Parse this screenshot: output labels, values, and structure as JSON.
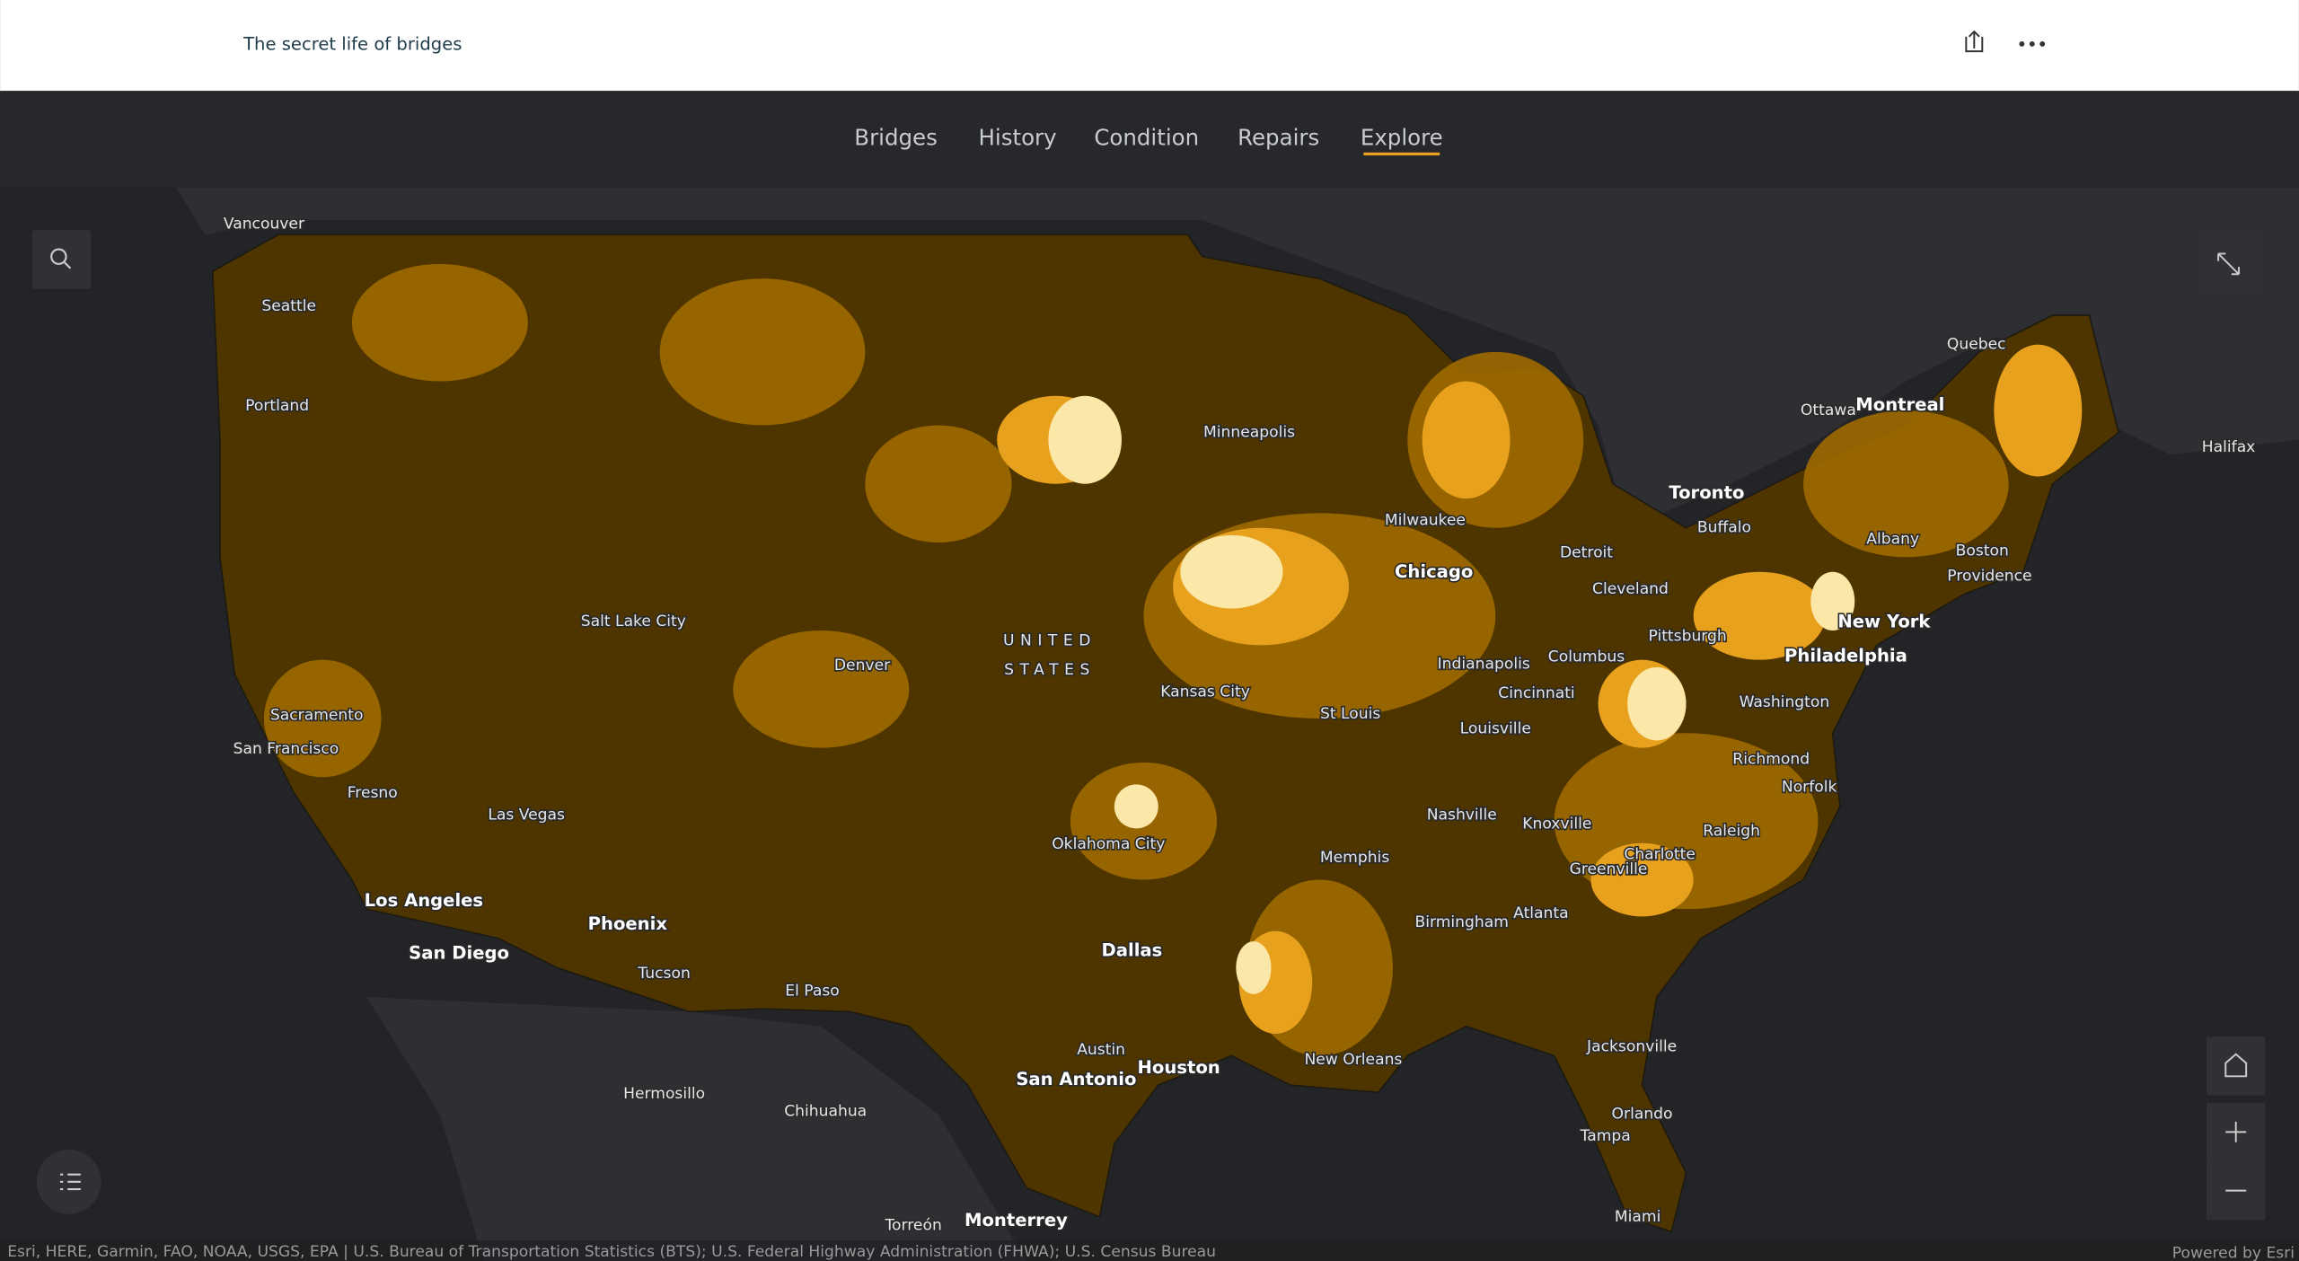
{
  "header": {
    "title": "The secret life of bridges"
  },
  "nav": {
    "tabs": [
      "Bridges",
      "History",
      "Condition",
      "Repairs",
      "Explore"
    ],
    "active": 4
  },
  "map": {
    "country": [
      "UNITED",
      "STATES"
    ],
    "places": [
      "Vancouver",
      "Seattle",
      "Portland",
      "Sacramento",
      "San Francisco",
      "Fresno",
      "Las Vegas",
      "Los Angeles",
      "San Diego",
      "Phoenix",
      "Tucson",
      "Salt Lake City",
      "Denver",
      "El Paso",
      "Hermosillo",
      "Chihuahua",
      "Torreón",
      "Monterrey",
      "San Antonio",
      "Austin",
      "Houston",
      "Dallas",
      "Oklahoma City",
      "Kansas City",
      "Minneapolis",
      "Milwaukee",
      "Chicago",
      "Detroit",
      "Cleveland",
      "Toronto",
      "Buffalo",
      "Ottawa",
      "Montreal",
      "Quebec",
      "Halifax",
      "Albany",
      "Boston",
      "Providence",
      "New York",
      "Philadelphia",
      "Pittsburgh",
      "Columbus",
      "Indianapolis",
      "Cincinnati",
      "St Louis",
      "Louisville",
      "Washington",
      "Richmond",
      "Norfolk",
      "Nashville",
      "Knoxville",
      "Raleigh",
      "Charlotte",
      "Greenville",
      "Memphis",
      "Birmingham",
      "Atlanta",
      "New Orleans",
      "Jacksonville",
      "Orlando",
      "Tampa",
      "Miami"
    ],
    "attribution": "Esri, HERE, Garmin, FAO, NOAA, USGS, EPA | U.S. Bureau of Transportation Statistics (BTS); U.S. Federal Highway Administration (FHWA); U.S. Census Bureau",
    "powered_by": "Powered by Esri"
  }
}
